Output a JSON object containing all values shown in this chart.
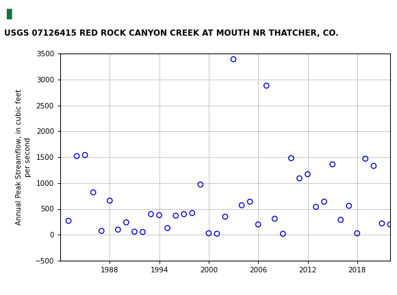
{
  "title": "USGS 07126415 RED ROCK CANYON CREEK AT MOUTH NR THATCHER, CO.",
  "ylabel": "Annual Peak Streamflow, in cubic feet\nper second",
  "xlim": [
    1982,
    2022
  ],
  "ylim": [
    -500,
    3500
  ],
  "yticks": [
    -500,
    0,
    500,
    1000,
    1500,
    2000,
    2500,
    3000,
    3500
  ],
  "xticks": [
    1988,
    1994,
    2000,
    2006,
    2012,
    2018
  ],
  "header_color": "#1a7040",
  "dot_color": "#0000cc",
  "bg_color": "#ffffff",
  "data": [
    [
      1983,
      270
    ],
    [
      1984,
      1520
    ],
    [
      1985,
      1540
    ],
    [
      1986,
      820
    ],
    [
      1987,
      75
    ],
    [
      1988,
      660
    ],
    [
      1989,
      100
    ],
    [
      1990,
      240
    ],
    [
      1991,
      60
    ],
    [
      1992,
      55
    ],
    [
      1993,
      400
    ],
    [
      1994,
      380
    ],
    [
      1995,
      130
    ],
    [
      1996,
      370
    ],
    [
      1997,
      400
    ],
    [
      1998,
      420
    ],
    [
      1999,
      970
    ],
    [
      2000,
      30
    ],
    [
      2001,
      20
    ],
    [
      2002,
      350
    ],
    [
      2003,
      3390
    ],
    [
      2004,
      570
    ],
    [
      2005,
      640
    ],
    [
      2006,
      200
    ],
    [
      2007,
      2880
    ],
    [
      2008,
      310
    ],
    [
      2009,
      20
    ],
    [
      2010,
      1480
    ],
    [
      2011,
      1090
    ],
    [
      2012,
      1170
    ],
    [
      2013,
      540
    ],
    [
      2014,
      640
    ],
    [
      2015,
      1360
    ],
    [
      2016,
      290
    ],
    [
      2017,
      560
    ],
    [
      2018,
      30
    ],
    [
      2019,
      1470
    ],
    [
      2020,
      1330
    ],
    [
      2021,
      220
    ],
    [
      2022,
      200
    ]
  ]
}
